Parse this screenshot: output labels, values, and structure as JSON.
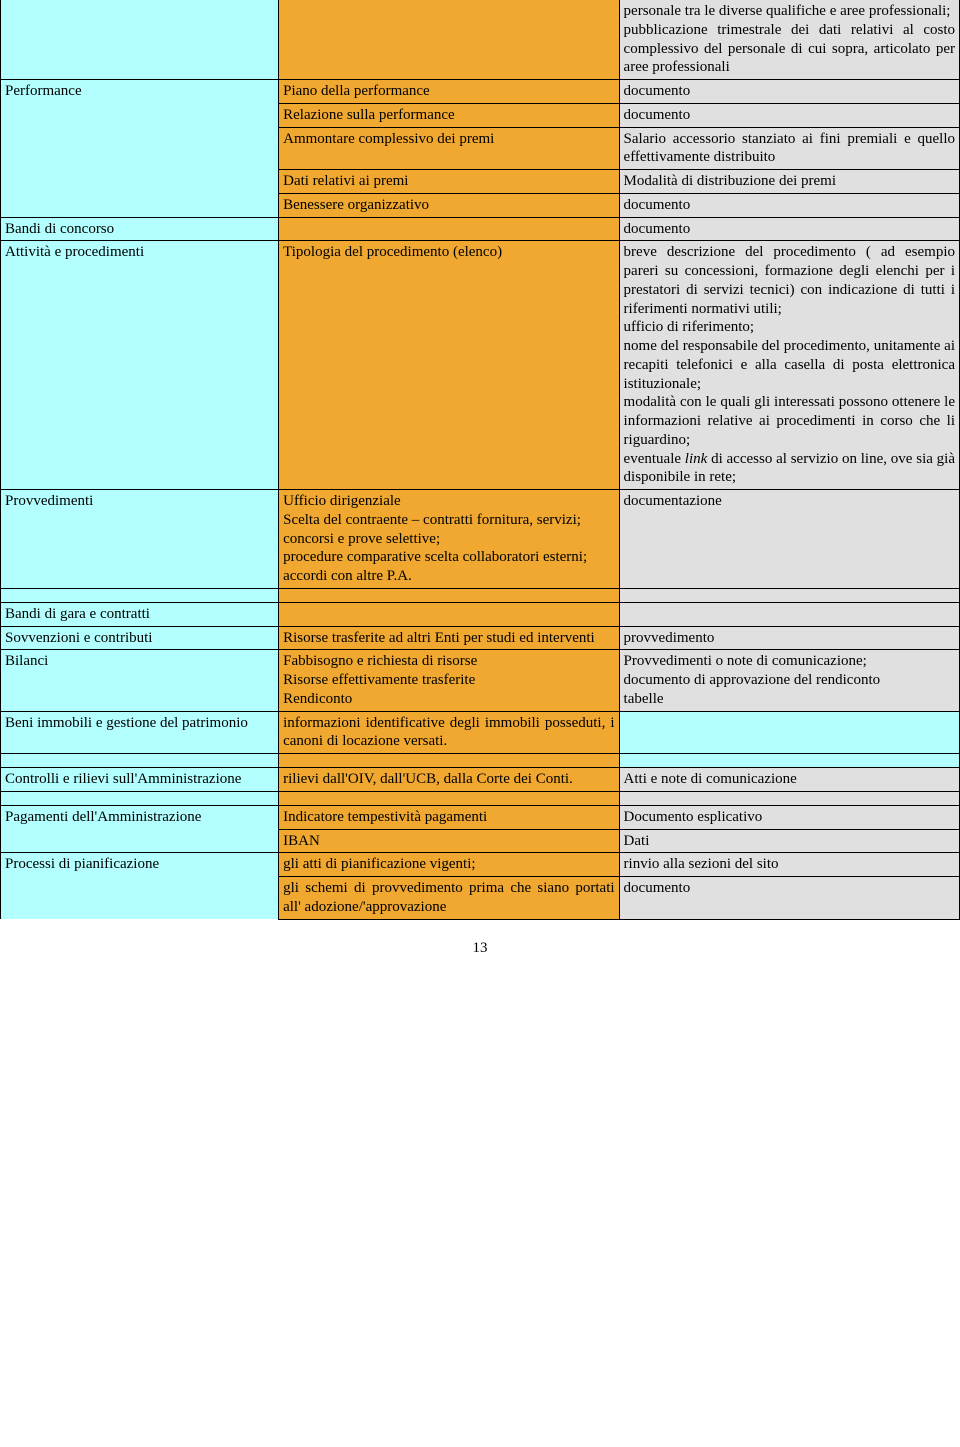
{
  "rows": {
    "r0c3": "personale tra le diverse qualifiche e aree professionali;\npubblicazione trimestrale dei dati relativi al costo complessivo del personale di cui sopra, articolato per aree professionali",
    "performance": "Performance",
    "piano": "Piano della performance",
    "doc": "documento",
    "relazione": "Relazione sulla performance",
    "ammontare": "Ammontare complessivo dei premi",
    "salario": "Salario accessorio stanziato ai fini premiali e quello effettivamente distribuito",
    "dati_premi": "Dati relativi ai premi",
    "modalita": "Modalità di distribuzione dei premi",
    "benessere": "Benessere organizzativo",
    "bandi_concorso": "Bandi di concorso",
    "attivita": "Attività e procedimenti",
    "tipologia": "Tipologia del procedimento (elenco)",
    "breve_pre": "breve descrizione del procedimento ( ad esempio pareri su concessioni, formazione degli elenchi per i prestatori di servizi tecnici) con indicazione di tutti i riferimenti normativi utili;\nufficio di riferimento;\nnome del responsabile del procedimento, unitamente ai recapiti telefonici e alla casella di posta elettronica istituzionale;\nmodalità con le quali gli interessati possono ottenere le informazioni relative ai procedimenti in corso che li riguardino;",
    "breve_link_pre": "eventuale ",
    "breve_link": "link",
    "breve_link_post": " di accesso al servizio on line, ove sia già disponibile in rete;",
    "provvedimenti": "Provvedimenti",
    "ufficio": "Ufficio dirigenziale\nScelta del contraente – contratti fornitura, servizi;\nconcorsi e prove selettive;\nprocedure comparative scelta collaboratori esterni;\naccordi con  altre P.A.",
    "documentazione": "documentazione",
    "bandi_gara": "Bandi di gara e contratti",
    "sovvenzioni": "Sovvenzioni e contributi",
    "risorse_trasf": "Risorse trasferite ad altri Enti per studi ed interventi",
    "provvedimento": "provvedimento",
    "bilanci": "Bilanci",
    "fabbisogno": "Fabbisogno e richiesta di risorse\nRisorse effettivamente trasferite\nRendiconto",
    "provv_note": "Provvedimenti o note di comunicazione;\ndocumento di approvazione del rendiconto\ntabelle",
    "beni": "Beni immobili e gestione del patrimonio",
    "info_immobili": "informazioni identificative degli immobili posseduti, i canoni di locazione versati.",
    "controlli": "Controlli e rilievi sull'Amministrazione",
    "rilievi": "rilievi dall'OIV, dall'UCB, dalla Corte dei Conti.",
    "atti_note": "Atti e note di comunicazione",
    "pagamenti": "Pagamenti dell'Amministrazione",
    "indicatore": "Indicatore tempestività pagamenti",
    "doc_espl": "Documento esplicativo",
    "iban": "IBAN",
    "dati": "Dati",
    "processi": "Processi di pianificazione",
    "atti_pian": "gli atti di pianificazione vigenti;",
    "rinvio": "rinvio alla sezioni del sito",
    "schemi": "gli schemi di provvedimento prima che siano portati all' adozione/'approvazione",
    "pagenum": "13"
  }
}
